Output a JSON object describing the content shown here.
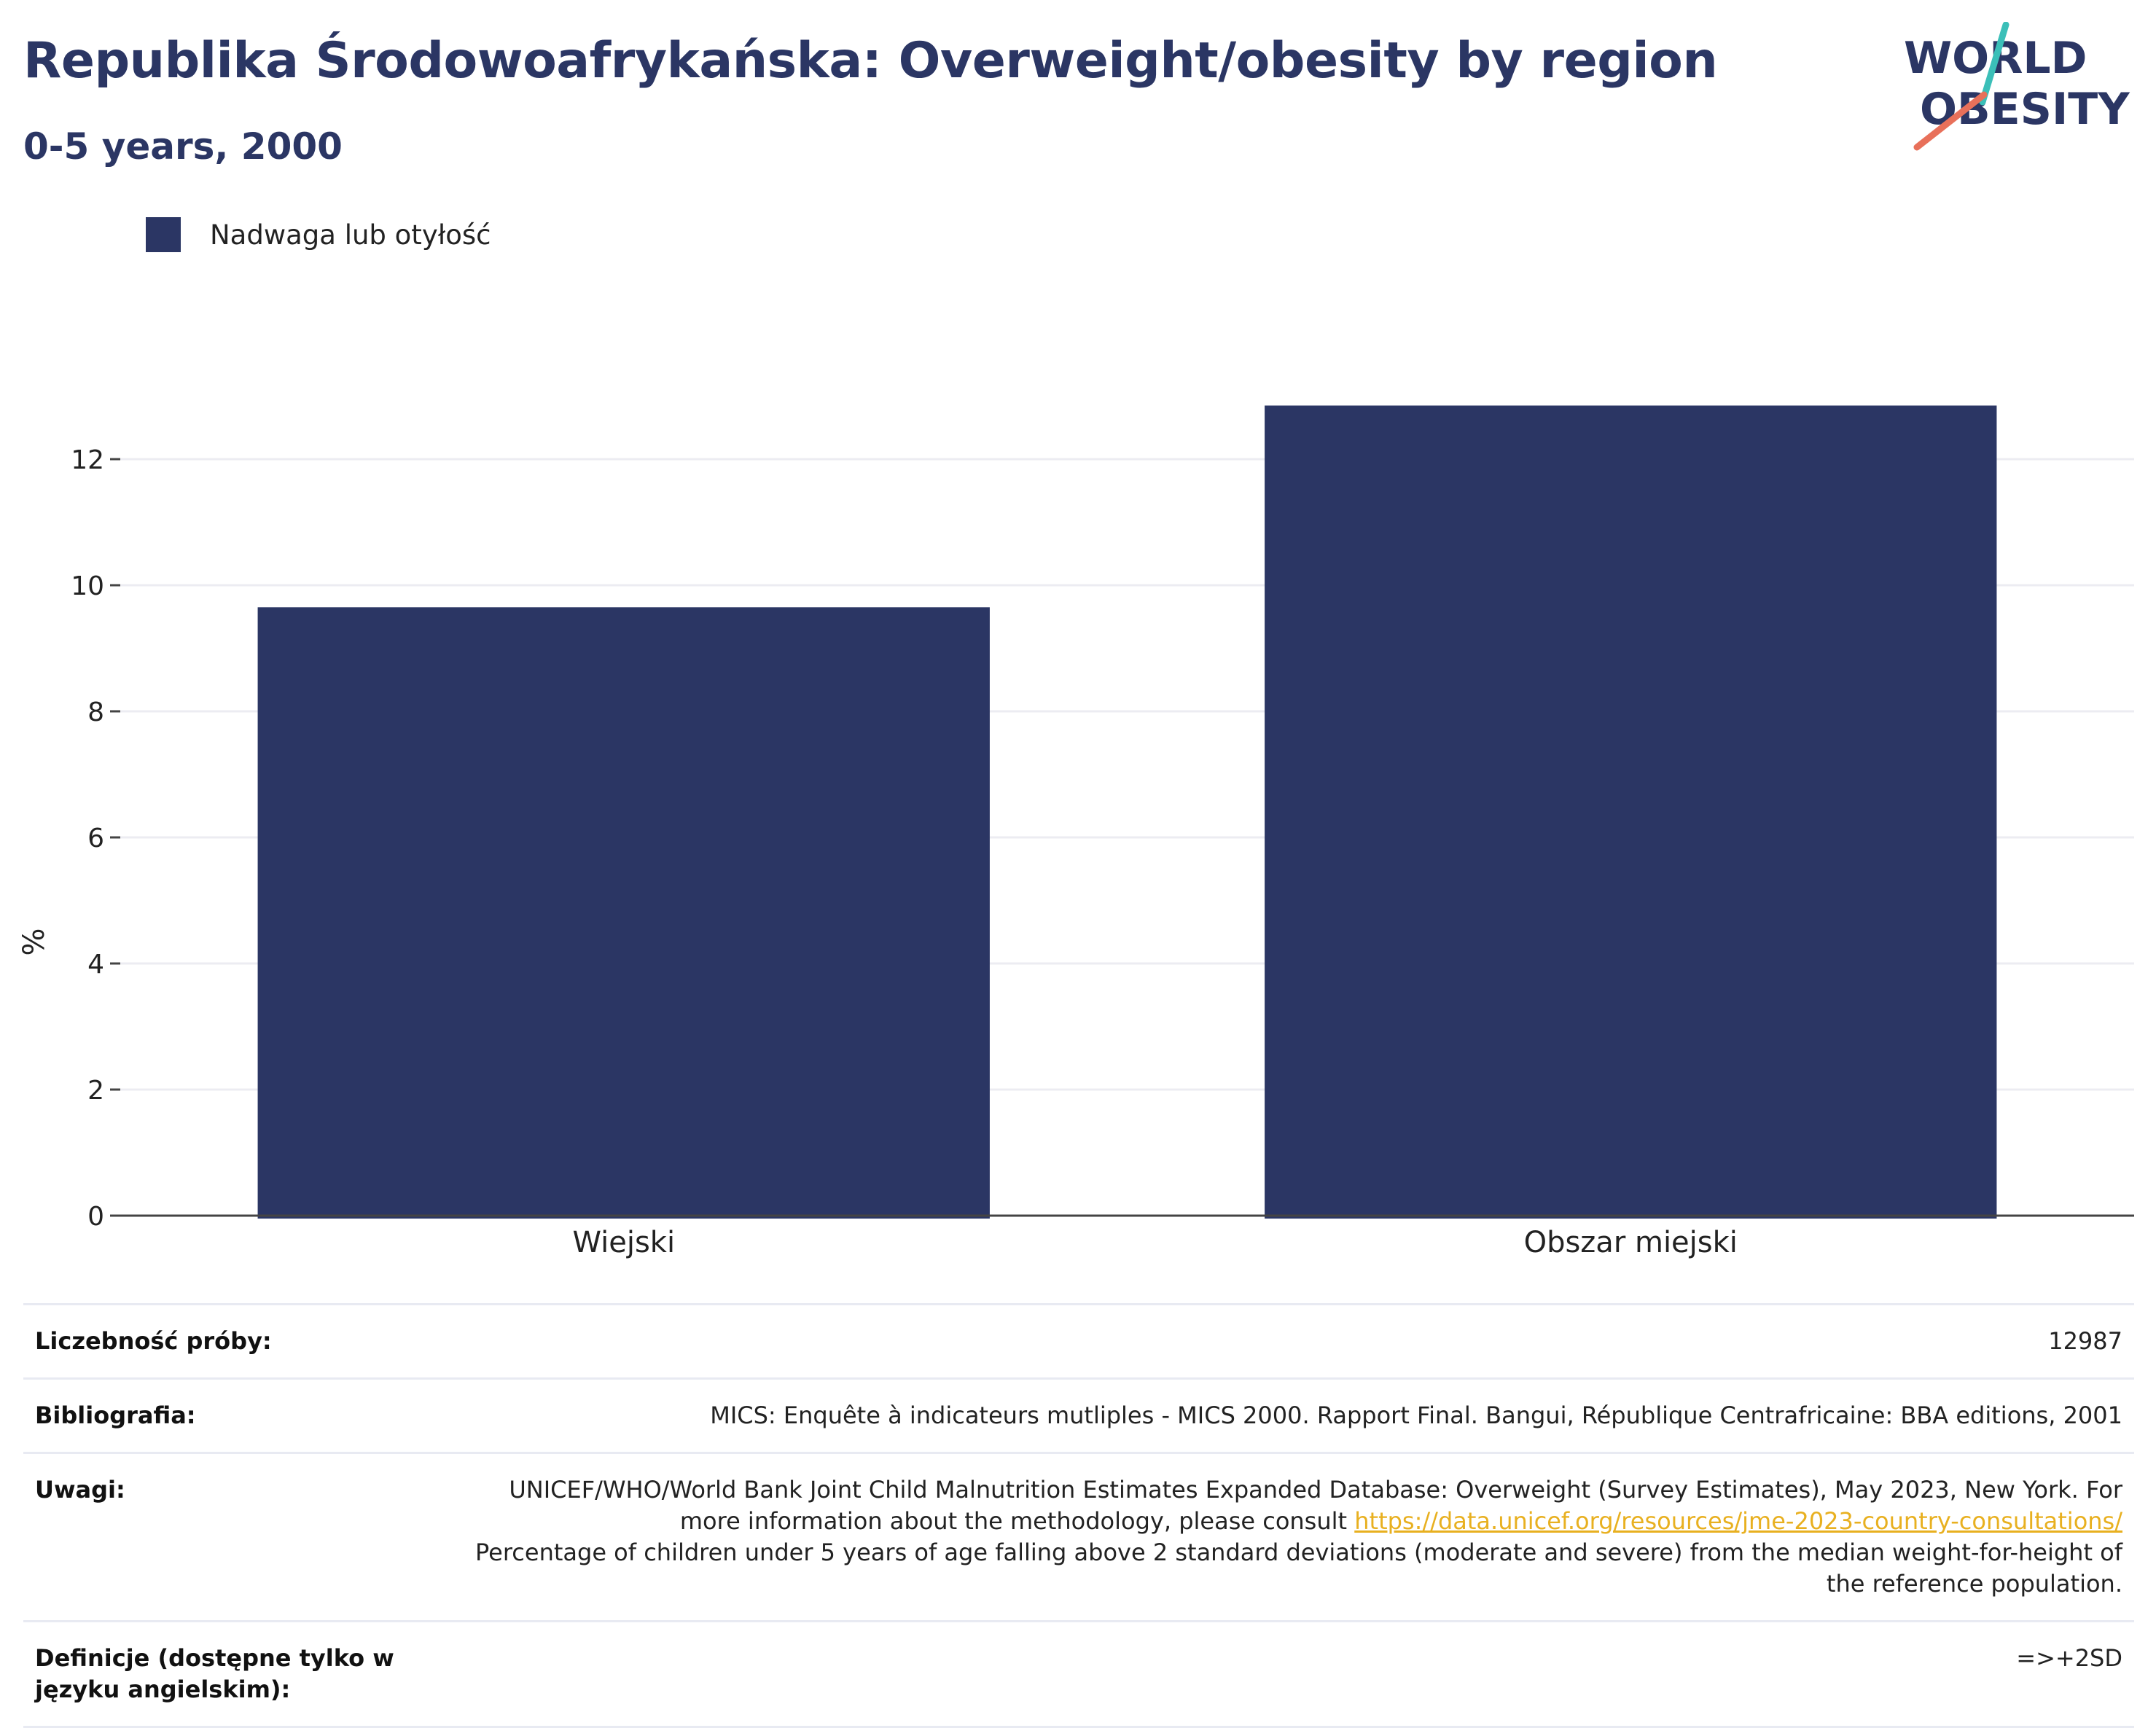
{
  "header": {
    "title": "Republika Środowoafrykańska: Overweight/obesity by region",
    "subtitle": "0-5 years, 2000"
  },
  "logo": {
    "line1": "WORLD",
    "line2": "OBESITY",
    "slash_colors": [
      "#3bbfb8",
      "#e8705a"
    ]
  },
  "legend": {
    "label": "Nadwaga lub otyłość"
  },
  "colors": {
    "bar": "#2b3664",
    "title": "#2b3664",
    "grid": "#ececf2",
    "link": "#e8b020"
  },
  "chart_data": {
    "type": "bar",
    "categories": [
      "Wiejski",
      "Obszar miejski"
    ],
    "series": [
      {
        "name": "Nadwaga lub otyłość",
        "values": [
          9.65,
          12.85
        ]
      }
    ],
    "ylabel": "%",
    "xlabel": "",
    "ylim": [
      0,
      14
    ],
    "yticks": [
      0,
      2,
      4,
      6,
      8,
      10,
      12
    ],
    "grid": true,
    "legend_position": "top-left"
  },
  "info": {
    "sample_label": "Liczebność próby:",
    "sample_value": "12987",
    "bib_label": "Bibliografia:",
    "bib_value": "MICS: Enquête à indicateurs mutliples - MICS 2000. Rapport Final. Bangui, République Centrafricaine: BBA editions, 2001",
    "notes_label": "Uwagi:",
    "notes_text1": "UNICEF/WHO/World Bank Joint Child Malnutrition Estimates Expanded Database: Overweight (Survey Estimates), May 2023, New York. For more information about the methodology, please consult ",
    "notes_link": "https://data.unicef.org/resources/jme-2023-country-consultations/",
    "notes_text2": "Percentage of children under 5 years of age falling above 2 standard deviations (moderate and severe) from the median weight-for-height of the reference population.",
    "def_label": "Definicje (dostępne tylko w języku angielskim):",
    "def_value": "=>+2SD"
  }
}
